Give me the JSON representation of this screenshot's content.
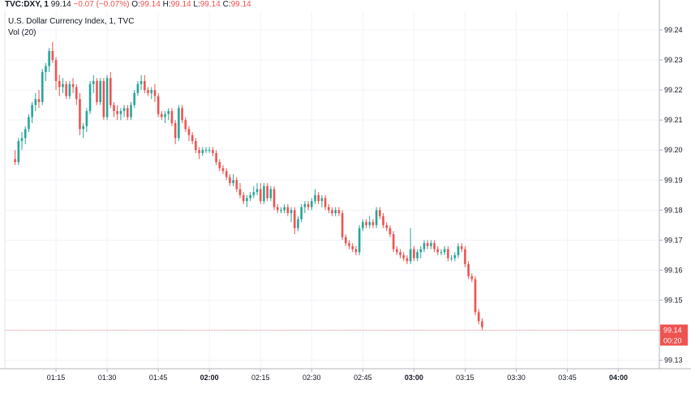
{
  "header": {
    "symbol": "TVC:DXY, 1",
    "price": "99.14",
    "change": "−0.07 (−0.07%)",
    "open_label": "O:",
    "open": "99.14",
    "high_label": "H:",
    "high": "99.14",
    "low_label": "L:",
    "low": "99.14",
    "close_label": "C:",
    "close": "99.14"
  },
  "legend": {
    "title": "U.S. Dollar Currency Index, 1, TVC",
    "volume": "Vol (20)"
  },
  "colors": {
    "up": "#26a69a",
    "down": "#ef5350",
    "grid": "#f0f3fa",
    "axis": "#b2b5be",
    "price_tag": "#ef5350"
  },
  "price_tag": "99.14",
  "time_tag": "00:20",
  "chart_data": {
    "type": "candlestick",
    "title": "U.S. Dollar Currency Index, 1, TVC",
    "xlabel": "",
    "ylabel": "",
    "ylim": [
      99.13,
      99.25
    ],
    "y_ticks": [
      "99.24",
      "99.23",
      "99.22",
      "99.21",
      "99.20",
      "99.19",
      "99.18",
      "99.17",
      "99.16",
      "99.15",
      "99.14",
      "99.13"
    ],
    "x_ticks": [
      {
        "label": "01:15",
        "minute": 75,
        "bold": false
      },
      {
        "label": "01:30",
        "minute": 90,
        "bold": false
      },
      {
        "label": "01:45",
        "minute": 105,
        "bold": false
      },
      {
        "label": "02:00",
        "minute": 120,
        "bold": true
      },
      {
        "label": "02:15",
        "minute": 135,
        "bold": false
      },
      {
        "label": "02:30",
        "minute": 150,
        "bold": false
      },
      {
        "label": "02:45",
        "minute": 165,
        "bold": false
      },
      {
        "label": "03:00",
        "minute": 180,
        "bold": true
      },
      {
        "label": "03:15",
        "minute": 195,
        "bold": false
      },
      {
        "label": "03:30",
        "minute": 210,
        "bold": false
      },
      {
        "label": "03:45",
        "minute": 225,
        "bold": false
      },
      {
        "label": "04:00",
        "minute": 240,
        "bold": true
      }
    ],
    "start_minute": 63,
    "interval_minutes": 1,
    "candles": [
      [
        99.197,
        99.2,
        99.195,
        99.196
      ],
      [
        99.196,
        99.204,
        99.195,
        99.203
      ],
      [
        99.203,
        99.206,
        99.2,
        99.204
      ],
      [
        99.204,
        99.208,
        99.202,
        99.207
      ],
      [
        99.207,
        99.212,
        99.206,
        99.211
      ],
      [
        99.211,
        99.216,
        99.209,
        99.215
      ],
      [
        99.215,
        99.219,
        99.213,
        99.217
      ],
      [
        99.217,
        99.22,
        99.214,
        99.216
      ],
      [
        99.216,
        99.227,
        99.215,
        99.226
      ],
      [
        99.226,
        99.229,
        99.223,
        99.228
      ],
      [
        99.228,
        99.234,
        99.226,
        99.233
      ],
      [
        99.233,
        99.236,
        99.229,
        99.23
      ],
      [
        99.23,
        99.231,
        99.22,
        99.223
      ],
      [
        99.223,
        99.225,
        99.218,
        99.221
      ],
      [
        99.221,
        99.224,
        99.219,
        99.222
      ],
      [
        99.222,
        99.223,
        99.217,
        99.218
      ],
      [
        99.218,
        99.223,
        99.217,
        99.222
      ],
      [
        99.222,
        99.224,
        99.219,
        99.221
      ],
      [
        99.221,
        99.222,
        99.215,
        99.217
      ],
      [
        99.217,
        99.219,
        99.205,
        99.207
      ],
      [
        99.207,
        99.209,
        99.204,
        99.208
      ],
      [
        99.208,
        99.214,
        99.206,
        99.213
      ],
      [
        99.213,
        99.223,
        99.212,
        99.222
      ],
      [
        99.222,
        99.225,
        99.219,
        99.223
      ],
      [
        99.223,
        99.224,
        99.215,
        99.216
      ],
      [
        99.216,
        99.224,
        99.215,
        99.223
      ],
      [
        99.223,
        99.224,
        99.21,
        99.211
      ],
      [
        99.211,
        99.225,
        99.21,
        99.224
      ],
      [
        99.224,
        99.226,
        99.214,
        99.215
      ],
      [
        99.215,
        99.216,
        99.211,
        99.213
      ],
      [
        99.213,
        99.215,
        99.21,
        99.212
      ],
      [
        99.212,
        99.214,
        99.21,
        99.213
      ],
      [
        99.213,
        99.215,
        99.211,
        99.214
      ],
      [
        99.214,
        99.215,
        99.21,
        99.211
      ],
      [
        99.211,
        99.216,
        99.21,
        99.215
      ],
      [
        99.215,
        99.22,
        99.214,
        99.219
      ],
      [
        99.219,
        99.223,
        99.218,
        99.222
      ],
      [
        99.222,
        99.225,
        99.22,
        99.223
      ],
      [
        99.223,
        99.225,
        99.219,
        99.22
      ],
      [
        99.22,
        99.221,
        99.218,
        99.219
      ],
      [
        99.219,
        99.221,
        99.217,
        99.22
      ],
      [
        99.22,
        99.222,
        99.216,
        99.218
      ],
      [
        99.218,
        99.219,
        99.211,
        99.212
      ],
      [
        99.212,
        99.213,
        99.21,
        99.211
      ],
      [
        99.211,
        99.213,
        99.209,
        99.212
      ],
      [
        99.212,
        99.214,
        99.21,
        99.213
      ],
      [
        99.213,
        99.214,
        99.208,
        99.209
      ],
      [
        99.209,
        99.21,
        99.202,
        99.204
      ],
      [
        99.204,
        99.215,
        99.203,
        99.214
      ],
      [
        99.214,
        99.215,
        99.209,
        99.21
      ],
      [
        99.21,
        99.211,
        99.206,
        99.207
      ],
      [
        99.207,
        99.208,
        99.203,
        99.205
      ],
      [
        99.205,
        99.206,
        99.202,
        99.203
      ],
      [
        99.203,
        99.204,
        99.199,
        99.2
      ],
      [
        99.2,
        99.201,
        99.197,
        99.199
      ],
      [
        99.199,
        99.201,
        99.198,
        99.2
      ],
      [
        99.2,
        99.201,
        99.199,
        99.2
      ],
      [
        99.2,
        99.201,
        99.199,
        99.2
      ],
      [
        99.2,
        99.201,
        99.198,
        99.199
      ],
      [
        99.199,
        99.2,
        99.195,
        99.196
      ],
      [
        99.196,
        99.197,
        99.193,
        99.194
      ],
      [
        99.194,
        99.195,
        99.192,
        99.193
      ],
      [
        99.193,
        99.194,
        99.19,
        99.191
      ],
      [
        99.191,
        99.192,
        99.188,
        99.189
      ],
      [
        99.189,
        99.192,
        99.188,
        99.19
      ],
      [
        99.19,
        99.191,
        99.186,
        99.187
      ],
      [
        99.187,
        99.189,
        99.184,
        99.185
      ],
      [
        99.185,
        99.186,
        99.182,
        99.183
      ],
      [
        99.183,
        99.185,
        99.181,
        99.184
      ],
      [
        99.184,
        99.186,
        99.183,
        99.185
      ],
      [
        99.185,
        99.188,
        99.184,
        99.186
      ],
      [
        99.186,
        99.189,
        99.185,
        99.187
      ],
      [
        99.187,
        99.189,
        99.182,
        99.183
      ],
      [
        99.183,
        99.189,
        99.182,
        99.188
      ],
      [
        99.188,
        99.189,
        99.183,
        99.184
      ],
      [
        99.184,
        99.188,
        99.183,
        99.187
      ],
      [
        99.187,
        99.188,
        99.18,
        99.181
      ],
      [
        99.181,
        99.182,
        99.179,
        99.18
      ],
      [
        99.18,
        99.181,
        99.179,
        99.18
      ],
      [
        99.18,
        99.182,
        99.179,
        99.181
      ],
      [
        99.181,
        99.182,
        99.178,
        99.179
      ],
      [
        99.179,
        99.181,
        99.176,
        99.18
      ],
      [
        99.18,
        99.181,
        99.172,
        99.174
      ],
      [
        99.174,
        99.178,
        99.173,
        99.177
      ],
      [
        99.177,
        99.182,
        99.176,
        99.181
      ],
      [
        99.181,
        99.183,
        99.179,
        99.182
      ],
      [
        99.182,
        99.183,
        99.18,
        99.181
      ],
      [
        99.181,
        99.184,
        99.18,
        99.183
      ],
      [
        99.183,
        99.187,
        99.182,
        99.185
      ],
      [
        99.185,
        99.186,
        99.182,
        99.183
      ],
      [
        99.183,
        99.185,
        99.181,
        99.184
      ],
      [
        99.184,
        99.185,
        99.18,
        99.181
      ],
      [
        99.181,
        99.182,
        99.179,
        99.18
      ],
      [
        99.18,
        99.181,
        99.178,
        99.179
      ],
      [
        99.179,
        99.181,
        99.178,
        99.18
      ],
      [
        99.18,
        99.181,
        99.178,
        99.179
      ],
      [
        99.179,
        99.18,
        99.17,
        99.171
      ],
      [
        99.171,
        99.172,
        99.168,
        99.169
      ],
      [
        99.169,
        99.17,
        99.167,
        99.168
      ],
      [
        99.168,
        99.169,
        99.166,
        99.167
      ],
      [
        99.167,
        99.168,
        99.165,
        99.166
      ],
      [
        99.166,
        99.175,
        99.165,
        99.174
      ],
      [
        99.174,
        99.177,
        99.173,
        99.176
      ],
      [
        99.176,
        99.177,
        99.174,
        99.175
      ],
      [
        99.175,
        99.178,
        99.174,
        99.176
      ],
      [
        99.176,
        99.177,
        99.174,
        99.175
      ],
      [
        99.175,
        99.181,
        99.174,
        99.18
      ],
      [
        99.18,
        99.181,
        99.177,
        99.178
      ],
      [
        99.178,
        99.179,
        99.174,
        99.175
      ],
      [
        99.175,
        99.176,
        99.173,
        99.174
      ],
      [
        99.174,
        99.175,
        99.171,
        99.172
      ],
      [
        99.172,
        99.173,
        99.166,
        99.167
      ],
      [
        99.167,
        99.168,
        99.165,
        99.166
      ],
      [
        99.166,
        99.167,
        99.164,
        99.165
      ],
      [
        99.165,
        99.166,
        99.163,
        99.164
      ],
      [
        99.164,
        99.165,
        99.162,
        99.163
      ],
      [
        99.163,
        99.174,
        99.162,
        99.167
      ],
      [
        99.167,
        99.168,
        99.163,
        99.164
      ],
      [
        99.164,
        99.167,
        99.163,
        99.166
      ],
      [
        99.166,
        99.168,
        99.164,
        99.167
      ],
      [
        99.167,
        99.17,
        99.166,
        99.169
      ],
      [
        99.169,
        99.17,
        99.167,
        99.168
      ],
      [
        99.168,
        99.17,
        99.167,
        99.169
      ],
      [
        99.169,
        99.17,
        99.166,
        99.167
      ],
      [
        99.167,
        99.168,
        99.165,
        99.166
      ],
      [
        99.166,
        99.167,
        99.165,
        99.166
      ],
      [
        99.166,
        99.168,
        99.165,
        99.167
      ],
      [
        99.167,
        99.168,
        99.163,
        99.164
      ],
      [
        99.164,
        99.165,
        99.163,
        99.164
      ],
      [
        99.164,
        99.166,
        99.163,
        99.165
      ],
      [
        99.165,
        99.169,
        99.164,
        99.168
      ],
      [
        99.168,
        99.169,
        99.166,
        99.167
      ],
      [
        99.167,
        99.168,
        99.161,
        99.162
      ],
      [
        99.162,
        99.163,
        99.157,
        99.158
      ],
      [
        99.158,
        99.159,
        99.156,
        99.157
      ],
      [
        99.157,
        99.158,
        99.145,
        99.146
      ],
      [
        99.146,
        99.147,
        99.142,
        99.143
      ],
      [
        99.143,
        99.144,
        99.14,
        99.141
      ]
    ]
  }
}
